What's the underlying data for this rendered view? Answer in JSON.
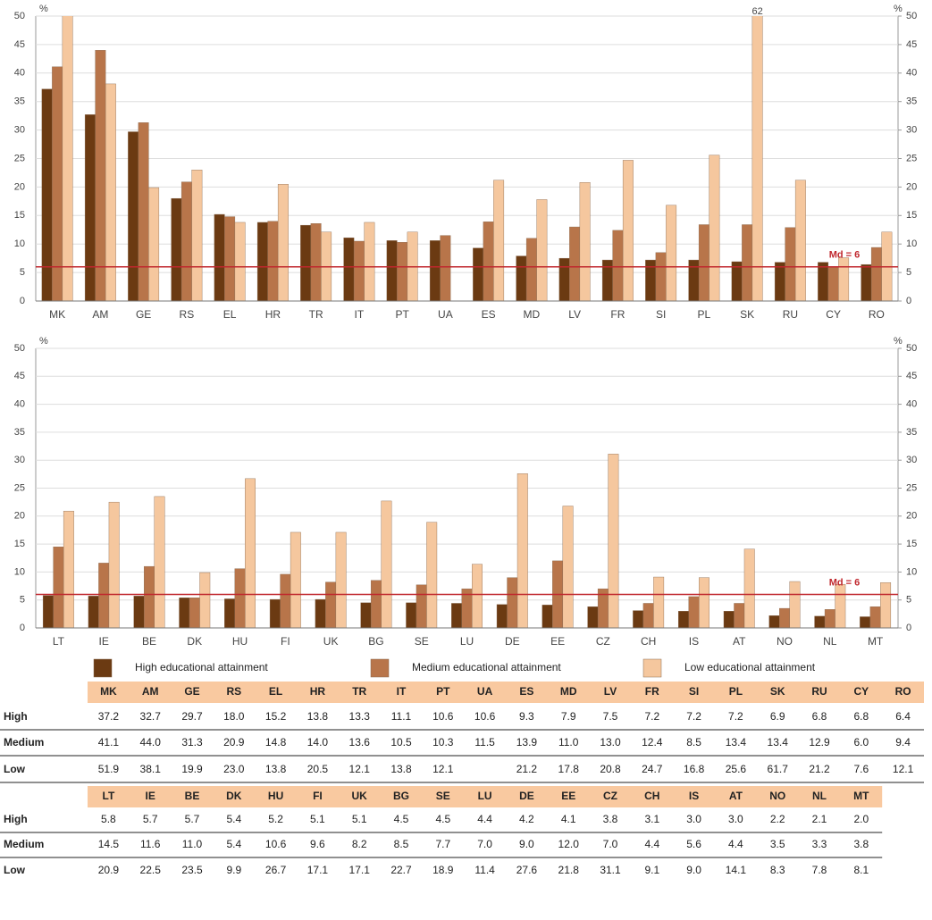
{
  "chart_data": [
    {
      "type": "bar",
      "ylabel": "%",
      "ylim": [
        0,
        50
      ],
      "yticks": [
        0,
        5,
        10,
        15,
        20,
        25,
        30,
        35,
        40,
        45,
        50
      ],
      "categories": [
        "MK",
        "AM",
        "GE",
        "RS",
        "EL",
        "HR",
        "TR",
        "IT",
        "PT",
        "UA",
        "ES",
        "MD",
        "LV",
        "FR",
        "SI",
        "PL",
        "SK",
        "RU",
        "CY",
        "RO"
      ],
      "series": [
        {
          "color": "#6b3a12",
          "values": [
            37.2,
            32.7,
            29.7,
            18.0,
            15.2,
            13.8,
            13.3,
            11.1,
            10.6,
            10.6,
            9.3,
            7.9,
            7.5,
            7.2,
            7.2,
            7.2,
            6.9,
            6.8,
            6.8,
            6.4
          ]
        },
        {
          "color": "#b8754a",
          "values": [
            41.1,
            44.0,
            31.3,
            20.9,
            14.8,
            14.0,
            13.6,
            10.5,
            10.3,
            11.5,
            13.9,
            11.0,
            13.0,
            12.4,
            8.5,
            13.4,
            13.4,
            12.9,
            6.0,
            9.4
          ]
        },
        {
          "color": "#f5c79e",
          "values": [
            51.9,
            38.1,
            19.9,
            23.0,
            13.8,
            20.5,
            12.1,
            13.8,
            12.1,
            null,
            21.2,
            17.8,
            20.8,
            24.7,
            16.8,
            25.6,
            61.7,
            21.2,
            7.6,
            12.1
          ],
          "value_labels": [
            null,
            null,
            null,
            null,
            null,
            null,
            null,
            null,
            null,
            null,
            null,
            null,
            null,
            null,
            null,
            null,
            "62",
            null,
            null,
            null
          ]
        }
      ],
      "median": {
        "value": 6,
        "label": "Md = 6",
        "color": "#c0272d"
      }
    },
    {
      "type": "bar",
      "ylabel": "%",
      "ylim": [
        0,
        50
      ],
      "yticks": [
        0,
        5,
        10,
        15,
        20,
        25,
        30,
        35,
        40,
        45,
        50
      ],
      "categories": [
        "LT",
        "IE",
        "BE",
        "DK",
        "HU",
        "FI",
        "UK",
        "BG",
        "SE",
        "LU",
        "DE",
        "EE",
        "CZ",
        "CH",
        "IS",
        "AT",
        "NO",
        "NL",
        "MT"
      ],
      "series": [
        {
          "name": "High educational attainment",
          "color": "#6b3a12",
          "values": [
            5.8,
            5.7,
            5.7,
            5.4,
            5.2,
            5.1,
            5.1,
            4.5,
            4.5,
            4.4,
            4.2,
            4.1,
            3.8,
            3.1,
            3.0,
            3.0,
            2.2,
            2.1,
            2.0
          ]
        },
        {
          "name": "Medium educational attainment",
          "color": "#b8754a",
          "values": [
            14.5,
            11.6,
            11.0,
            5.4,
            10.6,
            9.6,
            8.2,
            8.5,
            7.7,
            7.0,
            9.0,
            12.0,
            7.0,
            4.4,
            5.6,
            4.4,
            3.5,
            3.3,
            3.8
          ]
        },
        {
          "name": "Low educational attainment",
          "color": "#f5c79e",
          "values": [
            20.9,
            22.5,
            23.5,
            9.9,
            26.7,
            17.1,
            17.1,
            22.7,
            18.9,
            11.4,
            27.6,
            21.8,
            31.1,
            9.1,
            9.0,
            14.1,
            8.3,
            7.8,
            8.1
          ]
        }
      ],
      "median": {
        "value": 6,
        "label": "Md = 6",
        "color": "#c0272d"
      }
    }
  ],
  "tables": [
    {
      "rows": [
        {
          "label": "High",
          "cells": [
            "37.2",
            "32.7",
            "29.7",
            "18.0",
            "15.2",
            "13.8",
            "13.3",
            "11.1",
            "10.6",
            "10.6",
            "9.3",
            "7.9",
            "7.5",
            "7.2",
            "7.2",
            "7.2",
            "6.9",
            "6.8",
            "6.8",
            "6.4"
          ]
        },
        {
          "label": "Medium",
          "cells": [
            "41.1",
            "44.0",
            "31.3",
            "20.9",
            "14.8",
            "14.0",
            "13.6",
            "10.5",
            "10.3",
            "11.5",
            "13.9",
            "11.0",
            "13.0",
            "12.4",
            "8.5",
            "13.4",
            "13.4",
            "12.9",
            "6.0",
            "9.4"
          ]
        },
        {
          "label": "Low",
          "cells": [
            "51.9",
            "38.1",
            "19.9",
            "23.0",
            "13.8",
            "20.5",
            "12.1",
            "13.8",
            "12.1",
            "",
            "21.2",
            "17.8",
            "20.8",
            "24.7",
            "16.8",
            "25.6",
            "61.7",
            "21.2",
            "7.6",
            "12.1"
          ]
        }
      ]
    },
    {
      "rows": [
        {
          "label": "High",
          "cells": [
            "5.8",
            "5.7",
            "5.7",
            "5.4",
            "5.2",
            "5.1",
            "5.1",
            "4.5",
            "4.5",
            "4.4",
            "4.2",
            "4.1",
            "3.8",
            "3.1",
            "3.0",
            "3.0",
            "2.2",
            "2.1",
            "2.0"
          ]
        },
        {
          "label": "Medium",
          "cells": [
            "14.5",
            "11.6",
            "11.0",
            "5.4",
            "10.6",
            "9.6",
            "8.2",
            "8.5",
            "7.7",
            "7.0",
            "9.0",
            "12.0",
            "7.0",
            "4.4",
            "5.6",
            "4.4",
            "3.5",
            "3.3",
            "3.8"
          ]
        },
        {
          "label": "Low",
          "cells": [
            "20.9",
            "22.5",
            "23.5",
            "9.9",
            "26.7",
            "17.1",
            "17.1",
            "22.7",
            "18.9",
            "11.4",
            "27.6",
            "21.8",
            "31.1",
            "9.1",
            "9.0",
            "14.1",
            "8.3",
            "7.8",
            "8.1"
          ]
        }
      ]
    }
  ]
}
